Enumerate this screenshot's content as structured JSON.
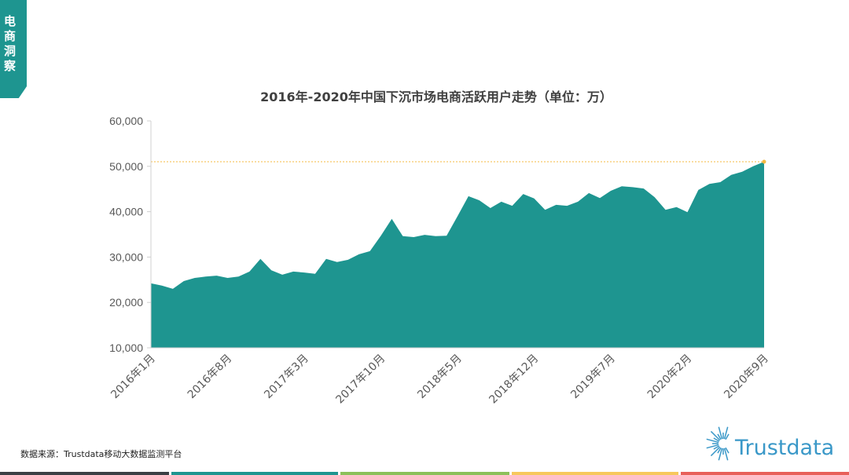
{
  "badge": "电商洞察",
  "source": "数据来源：Trustdata移动大数据监测平台",
  "logo": "Trustdata",
  "colors": {
    "area": "#1e9590",
    "reference": "#f5b942",
    "logo": "#3a98c8",
    "bars": [
      "#3a3f44",
      "#1e9590",
      "#8cc05a",
      "#f7c85c",
      "#e8605a"
    ]
  },
  "chart_data": {
    "type": "area",
    "title": "2016年-2020年中国下沉市场电商活跃用户走势（单位：万）",
    "xlabel": "",
    "ylabel": "",
    "ylim": [
      10000,
      60000
    ],
    "yticks": [
      "10,000",
      "20,000",
      "30,000",
      "40,000",
      "50,000",
      "60,000"
    ],
    "ytick_values": [
      10000,
      20000,
      30000,
      40000,
      50000,
      60000
    ],
    "xtick_labels": [
      "2016年1月",
      "2016年8月",
      "2017年3月",
      "2017年10月",
      "2018年5月",
      "2018年12月",
      "2019年7月",
      "2020年2月",
      "2020年9月"
    ],
    "xtick_every": 7,
    "reference_line": 51000,
    "grid": false,
    "values": [
      24200,
      23700,
      23000,
      24700,
      25400,
      25700,
      25900,
      25400,
      25700,
      26800,
      29600,
      27100,
      26100,
      26800,
      26600,
      26300,
      29600,
      28900,
      29400,
      30600,
      31300,
      34700,
      38400,
      34600,
      34400,
      34900,
      34600,
      34700,
      39000,
      43400,
      42500,
      40800,
      42200,
      41300,
      43900,
      42900,
      40400,
      41500,
      41300,
      42200,
      44100,
      43000,
      44600,
      45600,
      45400,
      45100,
      43200,
      40400,
      41000,
      39900,
      44800,
      46100,
      46500,
      48100,
      48800,
      50000,
      51000
    ]
  }
}
